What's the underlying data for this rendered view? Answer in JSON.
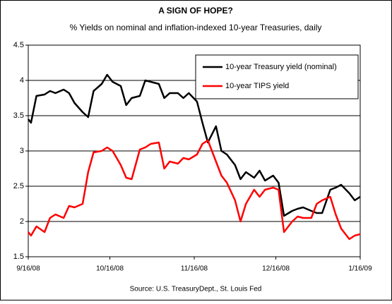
{
  "chart_data": {
    "type": "line",
    "title": "A SIGN OF HOPE?",
    "subtitle": "% Yields on nominal and inflation-indexed 10-year Treasuries, daily",
    "source": "Source: U.S. TreasuryDept., St. Louis Fed",
    "x": [
      "9/16/08",
      "9/17/08",
      "9/19/08",
      "9/22/08",
      "9/24/08",
      "9/26/08",
      "9/29/08",
      "10/1/08",
      "10/3/08",
      "10/6/08",
      "10/8/08",
      "10/10/08",
      "10/13/08",
      "10/15/08",
      "10/17/08",
      "10/20/08",
      "10/22/08",
      "10/24/08",
      "10/27/08",
      "10/29/08",
      "10/31/08",
      "11/3/08",
      "11/5/08",
      "11/7/08",
      "11/10/08",
      "11/12/08",
      "11/14/08",
      "11/17/08",
      "11/19/08",
      "11/21/08",
      "11/24/08",
      "11/26/08",
      "11/28/08",
      "12/1/08",
      "12/3/08",
      "12/5/08",
      "12/8/08",
      "12/10/08",
      "12/12/08",
      "12/15/08",
      "12/17/08",
      "12/19/08",
      "12/22/08",
      "12/24/08",
      "12/26/08",
      "12/29/08",
      "12/31/08",
      "1/2/09",
      "1/5/09",
      "1/7/09",
      "1/9/09",
      "1/12/09",
      "1/14/09",
      "1/16/09"
    ],
    "series": [
      {
        "name": "10-year Treasury yield (nominal)",
        "color": "#000000",
        "values": [
          3.45,
          3.4,
          3.78,
          3.8,
          3.85,
          3.82,
          3.87,
          3.82,
          3.68,
          3.55,
          3.48,
          3.85,
          3.95,
          4.08,
          3.98,
          3.92,
          3.65,
          3.75,
          3.78,
          4.0,
          3.98,
          3.95,
          3.75,
          3.82,
          3.82,
          3.75,
          3.82,
          3.7,
          3.4,
          3.12,
          3.35,
          3.0,
          2.95,
          2.8,
          2.6,
          2.7,
          2.62,
          2.72,
          2.58,
          2.65,
          2.55,
          2.08,
          2.15,
          2.18,
          2.2,
          2.15,
          2.12,
          2.12,
          2.45,
          2.48,
          2.52,
          2.4,
          2.3,
          2.35
        ]
      },
      {
        "name": "10-year TIPS yield",
        "color": "#ff0000",
        "values": [
          1.85,
          1.8,
          1.93,
          1.85,
          2.05,
          2.1,
          2.05,
          2.22,
          2.2,
          2.25,
          2.7,
          2.98,
          3.0,
          3.05,
          3.0,
          2.8,
          2.62,
          2.6,
          3.02,
          3.05,
          3.1,
          3.12,
          2.75,
          2.85,
          2.82,
          2.9,
          2.88,
          2.95,
          3.1,
          3.15,
          2.85,
          2.65,
          2.55,
          2.3,
          2.0,
          2.25,
          2.45,
          2.35,
          2.45,
          2.48,
          2.45,
          1.85,
          2.0,
          2.07,
          2.05,
          2.05,
          2.25,
          2.3,
          2.35,
          2.1,
          1.9,
          1.75,
          1.8,
          1.82
        ]
      }
    ],
    "xlim": [
      "9/16/08",
      "1/16/09"
    ],
    "xticks": [
      "9/16/08",
      "10/16/08",
      "11/16/08",
      "12/16/08",
      "1/16/09"
    ],
    "ylim": [
      1.5,
      4.5
    ],
    "yticks": [
      1.5,
      2,
      2.5,
      3,
      3.5,
      4,
      4.5
    ],
    "grid": true,
    "legend": "top-right"
  }
}
